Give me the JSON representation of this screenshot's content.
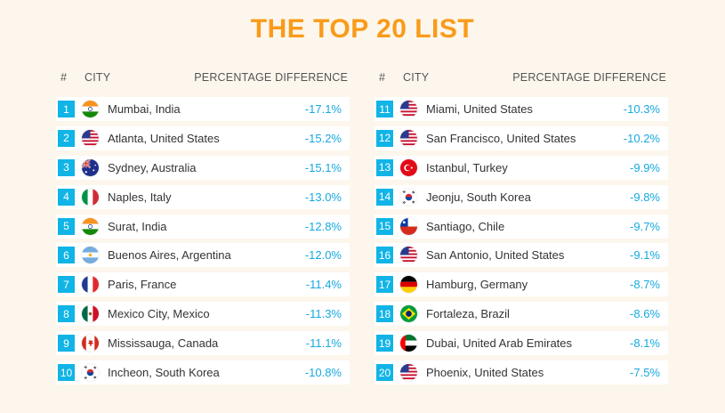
{
  "title": "THE TOP 20 LIST",
  "headers": {
    "num": "#",
    "city": "CITY",
    "pct": "PERCENTAGE DIFFERENCE"
  },
  "colors": {
    "title": "#f99b1a",
    "badge": "#11b4e6",
    "percent": "#16a9e0"
  },
  "left_rows": [
    {
      "rank": "1",
      "city": "Mumbai, India",
      "pct": "-17.1%",
      "flag": "india-flag-icon"
    },
    {
      "rank": "2",
      "city": "Atlanta, United States",
      "pct": "-15.2%",
      "flag": "usa-flag-icon"
    },
    {
      "rank": "3",
      "city": "Sydney, Australia",
      "pct": "-15.1%",
      "flag": "australia-flag-icon"
    },
    {
      "rank": "4",
      "city": "Naples, Italy",
      "pct": "-13.0%",
      "flag": "italy-flag-icon"
    },
    {
      "rank": "5",
      "city": "Surat, India",
      "pct": "-12.8%",
      "flag": "india-flag-icon"
    },
    {
      "rank": "6",
      "city": "Buenos Aires, Argentina",
      "pct": "-12.0%",
      "flag": "argentina-flag-icon"
    },
    {
      "rank": "7",
      "city": "Paris, France",
      "pct": "-11.4%",
      "flag": "france-flag-icon"
    },
    {
      "rank": "8",
      "city": "Mexico City, Mexico",
      "pct": "-11.3%",
      "flag": "mexico-flag-icon"
    },
    {
      "rank": "9",
      "city": "Mississauga, Canada",
      "pct": "-11.1%",
      "flag": "canada-flag-icon"
    },
    {
      "rank": "10",
      "city": "Incheon, South Korea",
      "pct": "-10.8%",
      "flag": "south-korea-flag-icon"
    }
  ],
  "right_rows": [
    {
      "rank": "11",
      "city": "Miami, United States",
      "pct": "-10.3%",
      "flag": "usa-flag-icon"
    },
    {
      "rank": "12",
      "city": "San Francisco, United States",
      "pct": "-10.2%",
      "flag": "usa-flag-icon"
    },
    {
      "rank": "13",
      "city": "Istanbul, Turkey",
      "pct": "-9.9%",
      "flag": "turkey-flag-icon"
    },
    {
      "rank": "14",
      "city": "Jeonju, South Korea",
      "pct": "-9.8%",
      "flag": "south-korea-flag-icon"
    },
    {
      "rank": "15",
      "city": "Santiago, Chile",
      "pct": "-9.7%",
      "flag": "chile-flag-icon"
    },
    {
      "rank": "16",
      "city": "San Antonio, United States",
      "pct": "-9.1%",
      "flag": "usa-flag-icon"
    },
    {
      "rank": "17",
      "city": "Hamburg, Germany",
      "pct": "-8.7%",
      "flag": "germany-flag-icon"
    },
    {
      "rank": "18",
      "city": "Fortaleza, Brazil",
      "pct": "-8.6%",
      "flag": "brazil-flag-icon"
    },
    {
      "rank": "19",
      "city": "Dubai, United Arab Emirates",
      "pct": "-8.1%",
      "flag": "uae-flag-icon"
    },
    {
      "rank": "20",
      "city": "Phoenix, United States",
      "pct": "-7.5%",
      "flag": "usa-flag-icon"
    }
  ]
}
